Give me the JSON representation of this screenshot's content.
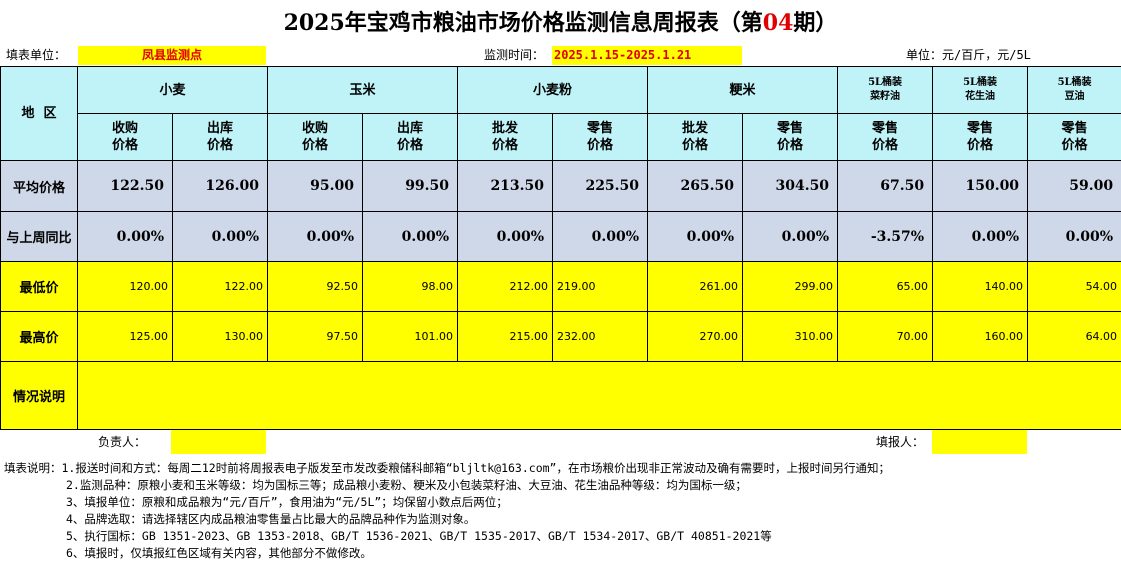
{
  "title": {
    "prefix": "2025年宝鸡市粮油市场价格监测信息周报表（第",
    "issue": "04",
    "suffix": "期）"
  },
  "meta": {
    "unit_label": "填表单位：",
    "unit_value": "凤县监测点",
    "period_label": "监测时间：",
    "period_value": "2025.1.15-2025.1.21",
    "measure": "单位：元/百斤，元/5L"
  },
  "header": {
    "region": "地  区",
    "groups": [
      "小麦",
      "玉米",
      "小麦粉",
      "粳米"
    ],
    "oil_groups": [
      {
        "line1": "5L桶装",
        "line2": "菜籽油"
      },
      {
        "line1": "5L桶装",
        "line2": "花生油"
      },
      {
        "line1": "5L桶装",
        "line2": "豆油"
      }
    ],
    "sub": [
      {
        "l1": "收购",
        "l2": "价格"
      },
      {
        "l1": "出库",
        "l2": "价格"
      },
      {
        "l1": "收购",
        "l2": "价格"
      },
      {
        "l1": "出库",
        "l2": "价格"
      },
      {
        "l1": "批发",
        "l2": "价格"
      },
      {
        "l1": "零售",
        "l2": "价格"
      },
      {
        "l1": "批发",
        "l2": "价格"
      },
      {
        "l1": "零售",
        "l2": "价格"
      },
      {
        "l1": "零售",
        "l2": "价格"
      },
      {
        "l1": "零售",
        "l2": "价格"
      },
      {
        "l1": "零售",
        "l2": "价格"
      }
    ]
  },
  "rows": {
    "avg": {
      "label": "平均价格",
      "values": [
        "122.50",
        "126.00",
        "95.00",
        "99.50",
        "213.50",
        "225.50",
        "265.50",
        "304.50",
        "67.50",
        "150.00",
        "59.00"
      ]
    },
    "yoy": {
      "label": "与上周同比",
      "values": [
        "0.00%",
        "0.00%",
        "0.00%",
        "0.00%",
        "0.00%",
        "0.00%",
        "0.00%",
        "0.00%",
        "-3.57%",
        "0.00%",
        "0.00%"
      ]
    },
    "min": {
      "label": "最低价",
      "values": [
        "120.00",
        "122.00",
        "92.50",
        "98.00",
        "212.00",
        "219.00",
        "261.00",
        "299.00",
        "65.00",
        "140.00",
        "54.00"
      ]
    },
    "max": {
      "label": "最高价",
      "values": [
        "125.00",
        "130.00",
        "97.50",
        "101.00",
        "215.00",
        "232.00",
        "270.00",
        "310.00",
        "70.00",
        "160.00",
        "64.00"
      ]
    },
    "notes": {
      "label": "情况说明",
      "value": ""
    }
  },
  "footer": {
    "owner_label": "负责人：",
    "filler_label": "填报人："
  },
  "notes": [
    "填表说明：1.报送时间和方式：每周二12时前将周报表电子版发至市发改委粮储科邮箱“bljltk@163.com”，在市场粮价出现非正常波动及确有需要时，上报时间另行通知；",
    "2.监测品种：原粮小麦和玉米等级：均为国标三等；成品粮小麦粉、粳米及小包装菜籽油、大豆油、花生油品种等级：均为国标一级；",
    "3、填报单位：原粮和成品粮为“元/百斤”，食用油为“元/5L”；均保留小数点后两位；",
    "4、品牌选取：请选择辖区内成品粮油零售量占比最大的品牌品种作为监测对象。",
    "5、执行国标：GB 1351-2023、GB 1353-2018、GB/T 1536-2021、GB/T 1535-2017、GB/T 1534-2017、GB/T 40851-2021等",
    "6、填报时，仅填报红色区域有关内容，其他部分不做修改。"
  ],
  "colors": {
    "cyan": "#bff3f7",
    "blue": "#cfd8e8",
    "yellow": "#ffff00",
    "red": "#e00000"
  }
}
